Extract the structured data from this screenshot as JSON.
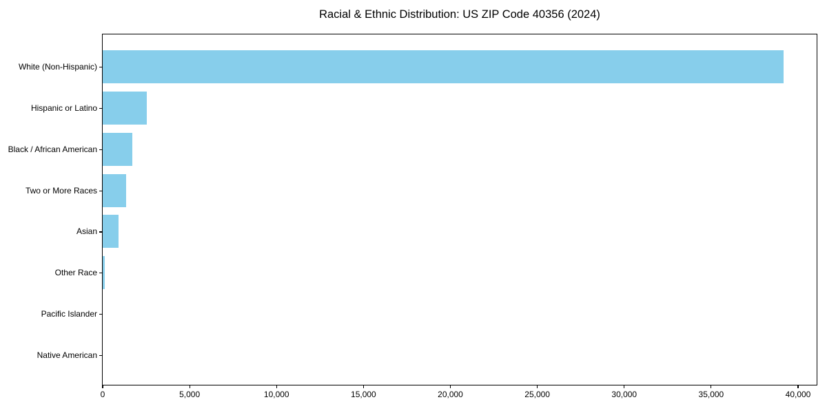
{
  "figure": {
    "background": "#ffffff"
  },
  "chart_data": {
    "type": "bar",
    "orientation": "horizontal",
    "title": "Racial & Ethnic Distribution: US ZIP Code 40356 (2024)",
    "xlabel": "",
    "ylabel": "",
    "categories": [
      "White (Non-Hispanic)",
      "Hispanic or Latino",
      "Black / African American",
      "Two or More Races",
      "Asian",
      "Other Race",
      "Pacific Islander",
      "Native American"
    ],
    "values": [
      39150,
      2520,
      1710,
      1330,
      930,
      130,
      0,
      0
    ],
    "xlim": [
      0,
      41070
    ],
    "x_ticks": [
      0,
      5000,
      10000,
      15000,
      20000,
      25000,
      30000,
      35000,
      40000
    ],
    "x_tick_labels": [
      "0",
      "5,000",
      "10,000",
      "15,000",
      "20,000",
      "25,000",
      "30,000",
      "35,000",
      "40,000"
    ],
    "bar_color": "#87ceeb",
    "axis_color": "#000000",
    "text_color": "#000000",
    "grid": false,
    "legend": null
  }
}
